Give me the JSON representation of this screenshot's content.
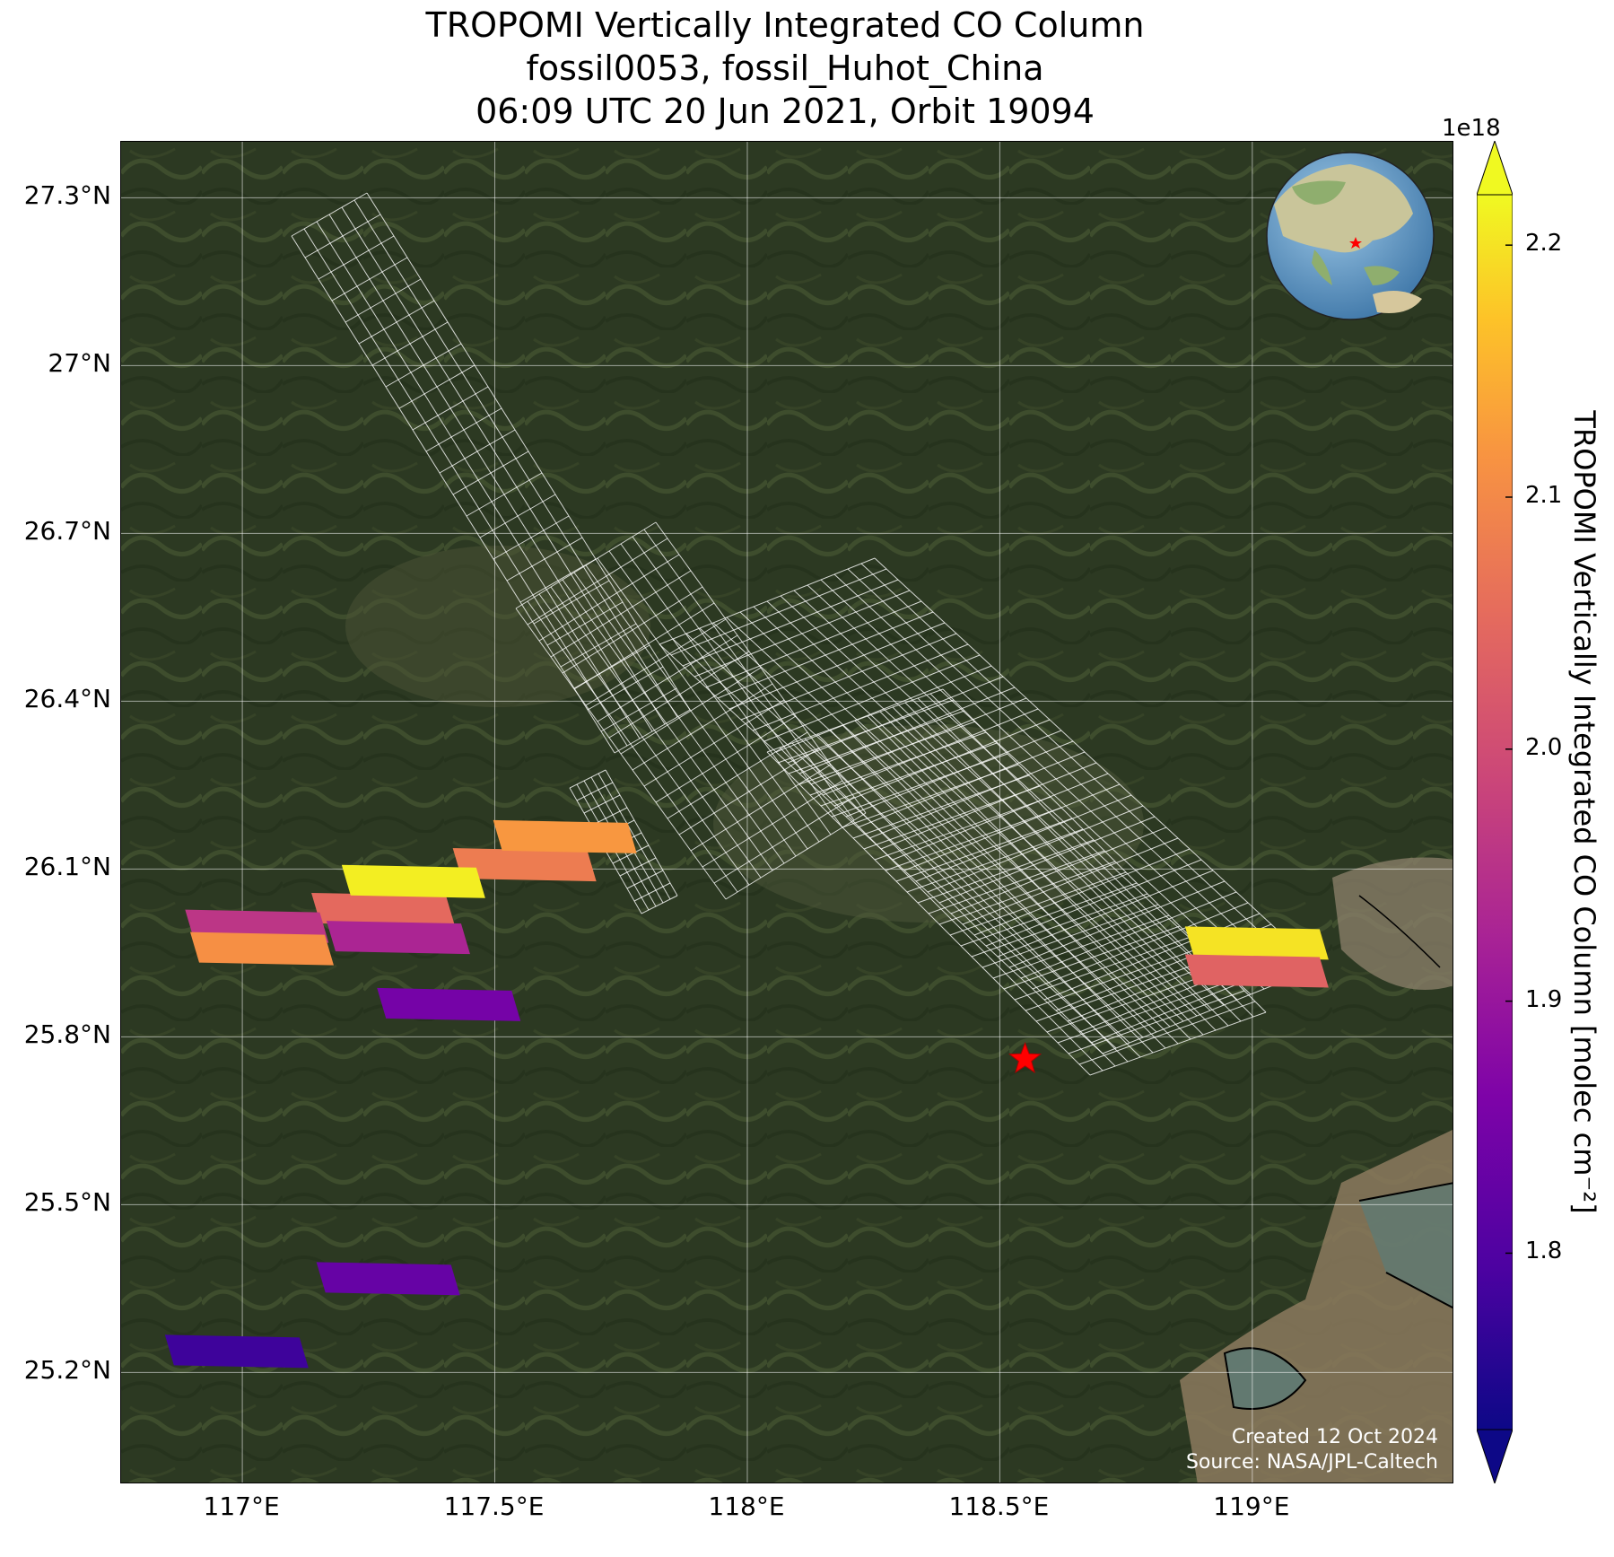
{
  "title": {
    "line1": "TROPOMI Vertically Integrated CO Column",
    "line2": "fossil0053, fossil_Huhot_China",
    "line3": "06:09 UTC 20 Jun 2021, Orbit 19094"
  },
  "map": {
    "lon_range": [
      116.76,
      119.4
    ],
    "lat_range": [
      25.0,
      27.4
    ],
    "lat_ticks": [
      "27.3°N",
      "27°N",
      "26.7°N",
      "26.4°N",
      "26.1°N",
      "25.8°N",
      "25.5°N",
      "25.2°N"
    ],
    "lon_ticks": [
      "117°E",
      "117.5°E",
      "118°E",
      "118.5°E",
      "119°E"
    ],
    "site_marker": {
      "lon": 118.55,
      "lat": 25.76,
      "symbol": "star",
      "color": "#ff0000"
    },
    "grid": true,
    "basemap": "satellite imagery",
    "footprint_outline_color": "#ffffff",
    "credits": {
      "line1": "Created 12 Oct 2024",
      "line2": "Source: NASA/JPL-Caltech"
    }
  },
  "colorbar": {
    "exponent": "1e18",
    "ticks": [
      "2.2",
      "2.1",
      "2.0",
      "1.9",
      "1.8"
    ],
    "label": "TROPOMI Vertically Integrated CO Column [molec cm⁻²]",
    "range": [
      1.73,
      2.22
    ],
    "colormap": "plasma",
    "extend": "both"
  },
  "inset_globe": {
    "center": "East Asia",
    "marker_color": "#ff0000"
  },
  "chart_data": {
    "type": "map",
    "title": "TROPOMI Vertically Integrated CO Column",
    "units": "molec cm^-2 (x1e18)",
    "colored_pixels": [
      {
        "lon": 117.27,
        "lat": 26.03,
        "value": 2.05
      },
      {
        "lon": 117.55,
        "lat": 26.11,
        "value": 2.08
      },
      {
        "lon": 117.63,
        "lat": 26.16,
        "value": 2.12
      },
      {
        "lon": 117.33,
        "lat": 26.08,
        "value": 2.21
      },
      {
        "lon": 117.02,
        "lat": 26.0,
        "value": 1.96
      },
      {
        "lon": 117.03,
        "lat": 25.96,
        "value": 2.11
      },
      {
        "lon": 117.3,
        "lat": 25.98,
        "value": 1.93
      },
      {
        "lon": 117.4,
        "lat": 25.86,
        "value": 1.85
      },
      {
        "lon": 119.0,
        "lat": 25.97,
        "value": 2.2
      },
      {
        "lon": 119.0,
        "lat": 25.92,
        "value": 2.04
      },
      {
        "lon": 117.28,
        "lat": 25.37,
        "value": 1.83
      },
      {
        "lon": 116.98,
        "lat": 25.24,
        "value": 1.78
      }
    ]
  }
}
